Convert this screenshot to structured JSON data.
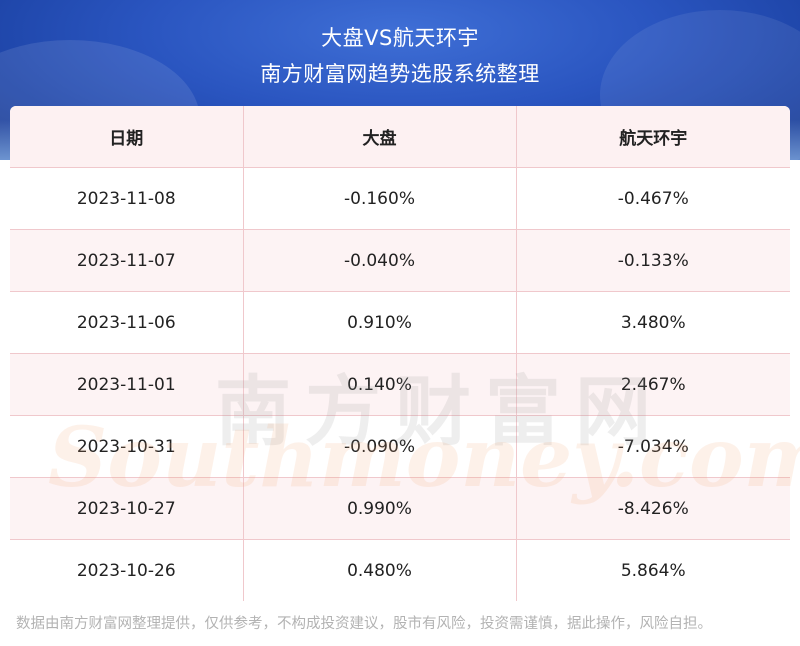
{
  "header": {
    "title": "大盘VS航天环宇",
    "subtitle": "南方财富网趋势选股系统整理"
  },
  "table": {
    "columns": [
      "日期",
      "大盘",
      "航天环宇"
    ],
    "rows": [
      [
        "2023-11-08",
        "-0.160%",
        "-0.467%"
      ],
      [
        "2023-11-07",
        "-0.040%",
        "-0.133%"
      ],
      [
        "2023-11-06",
        "0.910%",
        "3.480%"
      ],
      [
        "2023-11-01",
        "0.140%",
        "2.467%"
      ],
      [
        "2023-10-31",
        "-0.090%",
        "-7.034%"
      ],
      [
        "2023-10-27",
        "0.990%",
        "-8.426%"
      ],
      [
        "2023-10-26",
        "0.480%",
        "5.864%"
      ]
    ]
  },
  "watermark": {
    "cn": "南方财富网",
    "en": "Southmoney.com"
  },
  "footer": {
    "disclaimer": "数据由南方财富网整理提供，仅供参考，不构成投资建议，股市有风险，投资需谨慎，据此操作，风险自担。"
  },
  "colors": {
    "header_blue": "#2a55c0",
    "grid_line": "#f0c8cc",
    "row_alt": "#fdf3f4",
    "footer_text": "#b3b3b3"
  }
}
